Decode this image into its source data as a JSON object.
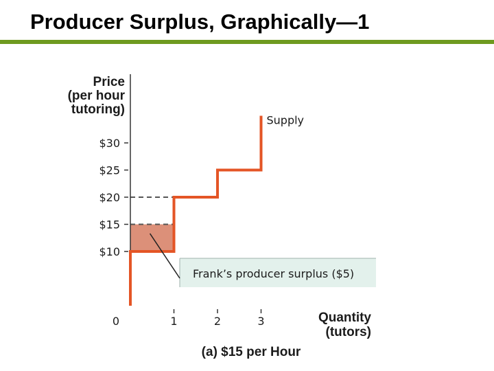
{
  "slide": {
    "title": "Producer Surplus, Graphically—1"
  },
  "chart_data": {
    "type": "line",
    "ylabel_lines": [
      "Price",
      "(per hour",
      "tutoring)"
    ],
    "xlabel_lines": [
      "Quantity",
      "(tutors)"
    ],
    "x_origin_label": "0",
    "x_ticks": [
      1,
      2,
      3
    ],
    "x_tick_labels": [
      "1",
      "2",
      "3"
    ],
    "y_ticks": [
      10,
      15,
      20,
      25,
      30
    ],
    "y_tick_labels": [
      "$10",
      "$15",
      "$20",
      "$25",
      "$30"
    ],
    "xlim": [
      0,
      5.5
    ],
    "ylim": [
      0,
      36
    ],
    "series": [
      {
        "name": "Supply",
        "color": "#e45526",
        "step_points": [
          [
            0,
            0
          ],
          [
            0,
            10
          ],
          [
            1,
            10
          ],
          [
            1,
            20
          ],
          [
            2,
            20
          ],
          [
            2,
            25
          ],
          [
            3,
            25
          ],
          [
            3,
            35
          ]
        ]
      }
    ],
    "reference_lines": [
      {
        "y": 20,
        "x_from": 0,
        "x_to": 1,
        "style": "dashed"
      },
      {
        "y": 15,
        "x_from": 0,
        "x_to": 1,
        "style": "dashed"
      }
    ],
    "shaded_region": {
      "x_from": 0,
      "x_to": 1,
      "y_from": 10,
      "y_to": 15,
      "color": "#dc9079"
    },
    "annotation": {
      "text": "Frank’s producer surplus ($5)",
      "points_to": [
        0.45,
        13.3
      ]
    },
    "caption": "(a) $15 per Hour"
  }
}
